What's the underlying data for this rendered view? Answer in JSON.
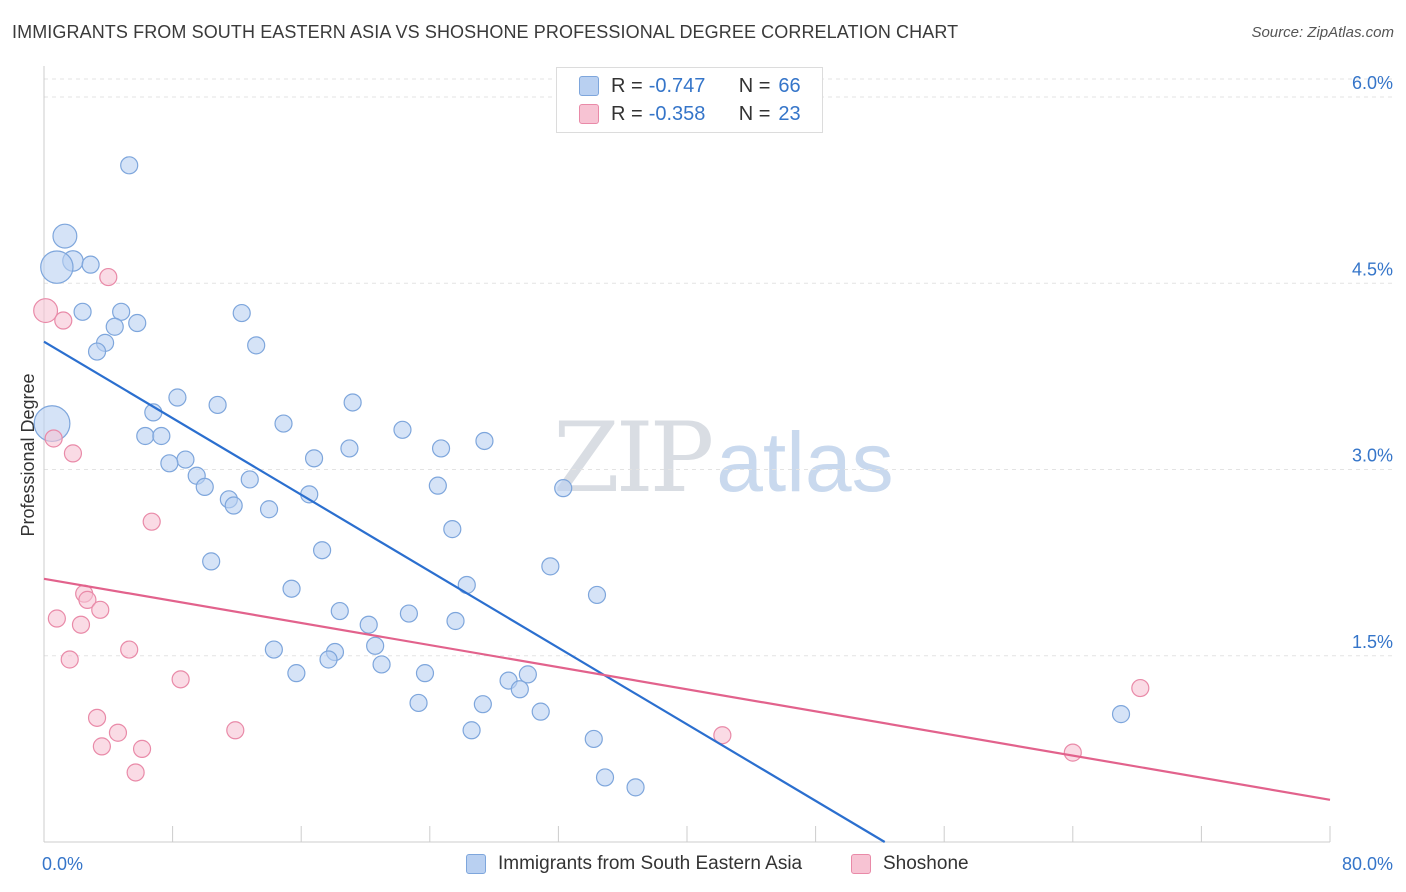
{
  "title": "IMMIGRANTS FROM SOUTH EASTERN ASIA VS SHOSHONE PROFESSIONAL DEGREE CORRELATION CHART",
  "source": "Source: ZipAtlas.com",
  "watermark": {
    "zip": "ZIP",
    "atlas": "atlas"
  },
  "colors": {
    "blue_fill": "#b9d0f1",
    "blue_stroke": "#7ea6dc",
    "blue_line": "#2b6fcf",
    "pink_fill": "#f7c3d3",
    "pink_stroke": "#e98aa8",
    "pink_line": "#e2628c",
    "axis_text": "#3575c9",
    "grid": "#e3e3e3"
  },
  "legend": {
    "rows": [
      {
        "r_label": "R =",
        "r_value": "-0.747",
        "n_label": "N =",
        "n_value": "66"
      },
      {
        "r_label": "R =",
        "r_value": "-0.358",
        "n_label": "N =",
        "n_value": "23"
      }
    ]
  },
  "chart_data": {
    "type": "scatter",
    "xlabel": "",
    "ylabel": "Professional Degree",
    "xlim": [
      0,
      80
    ],
    "ylim": [
      0,
      6.25
    ],
    "x_tick_labels": [
      {
        "value": 0,
        "label": "0.0%"
      },
      {
        "value": 80,
        "label": "80.0%"
      }
    ],
    "y_tick_labels": [
      {
        "value": 1.5,
        "label": "1.5%"
      },
      {
        "value": 3.0,
        "label": "3.0%"
      },
      {
        "value": 4.5,
        "label": "4.5%"
      },
      {
        "value": 6.0,
        "label": "6.0%"
      }
    ],
    "grid": true,
    "series": [
      {
        "name": "Immigrants from South Eastern Asia",
        "color": "blue",
        "trend": {
          "x": [
            0,
            52.3
          ],
          "y": [
            4.03,
            0
          ]
        },
        "points": [
          {
            "x": 5.3,
            "y": 5.45,
            "s": 1
          },
          {
            "x": 1.3,
            "y": 4.88,
            "s": 1.4
          },
          {
            "x": 1.8,
            "y": 4.68,
            "s": 1.2
          },
          {
            "x": 0.8,
            "y": 4.63,
            "s": 1.9
          },
          {
            "x": 2.9,
            "y": 4.65,
            "s": 1
          },
          {
            "x": 2.4,
            "y": 4.27,
            "s": 1
          },
          {
            "x": 4.8,
            "y": 4.27,
            "s": 1
          },
          {
            "x": 5.8,
            "y": 4.18,
            "s": 1
          },
          {
            "x": 4.4,
            "y": 4.15,
            "s": 1
          },
          {
            "x": 3.8,
            "y": 4.02,
            "s": 1
          },
          {
            "x": 3.3,
            "y": 3.95,
            "s": 1
          },
          {
            "x": 12.3,
            "y": 4.26,
            "s": 1
          },
          {
            "x": 13.2,
            "y": 4.0,
            "s": 1
          },
          {
            "x": 0.5,
            "y": 3.37,
            "s": 2.1
          },
          {
            "x": 8.3,
            "y": 3.58,
            "s": 1
          },
          {
            "x": 6.8,
            "y": 3.46,
            "s": 1
          },
          {
            "x": 10.8,
            "y": 3.52,
            "s": 1
          },
          {
            "x": 19.2,
            "y": 3.54,
            "s": 1
          },
          {
            "x": 6.3,
            "y": 3.27,
            "s": 1
          },
          {
            "x": 7.3,
            "y": 3.27,
            "s": 1
          },
          {
            "x": 14.9,
            "y": 3.37,
            "s": 1
          },
          {
            "x": 22.3,
            "y": 3.32,
            "s": 1
          },
          {
            "x": 8.8,
            "y": 3.08,
            "s": 1
          },
          {
            "x": 7.8,
            "y": 3.05,
            "s": 1
          },
          {
            "x": 16.8,
            "y": 3.09,
            "s": 1
          },
          {
            "x": 19.0,
            "y": 3.17,
            "s": 1
          },
          {
            "x": 24.7,
            "y": 3.17,
            "s": 1
          },
          {
            "x": 27.4,
            "y": 3.23,
            "s": 1
          },
          {
            "x": 9.5,
            "y": 2.95,
            "s": 1
          },
          {
            "x": 10.0,
            "y": 2.86,
            "s": 1
          },
          {
            "x": 12.8,
            "y": 2.92,
            "s": 1
          },
          {
            "x": 11.5,
            "y": 2.76,
            "s": 1
          },
          {
            "x": 11.8,
            "y": 2.71,
            "s": 1
          },
          {
            "x": 14.0,
            "y": 2.68,
            "s": 1
          },
          {
            "x": 16.5,
            "y": 2.8,
            "s": 1
          },
          {
            "x": 24.5,
            "y": 2.87,
            "s": 1
          },
          {
            "x": 32.3,
            "y": 2.85,
            "s": 1
          },
          {
            "x": 25.4,
            "y": 2.52,
            "s": 1
          },
          {
            "x": 10.4,
            "y": 2.26,
            "s": 1
          },
          {
            "x": 17.3,
            "y": 2.35,
            "s": 1
          },
          {
            "x": 31.5,
            "y": 2.22,
            "s": 1
          },
          {
            "x": 15.4,
            "y": 2.04,
            "s": 1
          },
          {
            "x": 26.3,
            "y": 2.07,
            "s": 1
          },
          {
            "x": 34.4,
            "y": 1.99,
            "s": 1
          },
          {
            "x": 18.4,
            "y": 1.86,
            "s": 1
          },
          {
            "x": 22.7,
            "y": 1.84,
            "s": 1
          },
          {
            "x": 25.6,
            "y": 1.78,
            "s": 1
          },
          {
            "x": 20.2,
            "y": 1.75,
            "s": 1
          },
          {
            "x": 14.3,
            "y": 1.55,
            "s": 1
          },
          {
            "x": 20.6,
            "y": 1.58,
            "s": 1
          },
          {
            "x": 18.1,
            "y": 1.53,
            "s": 1
          },
          {
            "x": 17.7,
            "y": 1.47,
            "s": 1
          },
          {
            "x": 21.0,
            "y": 1.43,
            "s": 1
          },
          {
            "x": 15.7,
            "y": 1.36,
            "s": 1
          },
          {
            "x": 23.7,
            "y": 1.36,
            "s": 1
          },
          {
            "x": 28.9,
            "y": 1.3,
            "s": 1
          },
          {
            "x": 30.1,
            "y": 1.35,
            "s": 1
          },
          {
            "x": 29.6,
            "y": 1.23,
            "s": 1
          },
          {
            "x": 23.3,
            "y": 1.12,
            "s": 1
          },
          {
            "x": 27.3,
            "y": 1.11,
            "s": 1
          },
          {
            "x": 30.9,
            "y": 1.05,
            "s": 1
          },
          {
            "x": 26.6,
            "y": 0.9,
            "s": 1
          },
          {
            "x": 34.2,
            "y": 0.83,
            "s": 1
          },
          {
            "x": 67.0,
            "y": 1.03,
            "s": 1
          },
          {
            "x": 34.9,
            "y": 0.52,
            "s": 1
          },
          {
            "x": 36.8,
            "y": 0.44,
            "s": 1
          }
        ]
      },
      {
        "name": "Shoshone",
        "color": "pink",
        "trend": {
          "x": [
            0,
            80
          ],
          "y": [
            2.12,
            0.34
          ]
        },
        "points": [
          {
            "x": 0.1,
            "y": 4.28,
            "s": 1.4
          },
          {
            "x": 4.0,
            "y": 4.55,
            "s": 1
          },
          {
            "x": 1.2,
            "y": 4.2,
            "s": 1
          },
          {
            "x": 0.6,
            "y": 3.25,
            "s": 1
          },
          {
            "x": 1.8,
            "y": 3.13,
            "s": 1
          },
          {
            "x": 6.7,
            "y": 2.58,
            "s": 1
          },
          {
            "x": 2.5,
            "y": 2.0,
            "s": 1
          },
          {
            "x": 2.7,
            "y": 1.95,
            "s": 1
          },
          {
            "x": 3.5,
            "y": 1.87,
            "s": 1
          },
          {
            "x": 0.8,
            "y": 1.8,
            "s": 1
          },
          {
            "x": 2.3,
            "y": 1.75,
            "s": 1
          },
          {
            "x": 5.3,
            "y": 1.55,
            "s": 1
          },
          {
            "x": 1.6,
            "y": 1.47,
            "s": 1
          },
          {
            "x": 8.5,
            "y": 1.31,
            "s": 1
          },
          {
            "x": 3.3,
            "y": 1.0,
            "s": 1
          },
          {
            "x": 4.6,
            "y": 0.88,
            "s": 1
          },
          {
            "x": 3.6,
            "y": 0.77,
            "s": 1
          },
          {
            "x": 6.1,
            "y": 0.75,
            "s": 1
          },
          {
            "x": 5.7,
            "y": 0.56,
            "s": 1
          },
          {
            "x": 11.9,
            "y": 0.9,
            "s": 1
          },
          {
            "x": 42.2,
            "y": 0.86,
            "s": 1
          },
          {
            "x": 64.0,
            "y": 0.72,
            "s": 1
          },
          {
            "x": 68.2,
            "y": 1.24,
            "s": 1
          }
        ]
      }
    ]
  }
}
